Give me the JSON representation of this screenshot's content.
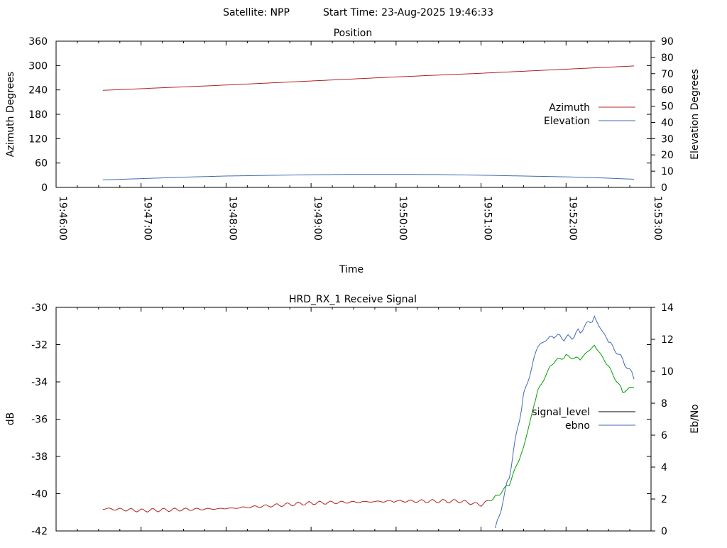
{
  "header": {
    "satellite_text": "Satellite: NPP",
    "start_time_text": "Start Time: 23-Aug-2025 19:46:33"
  },
  "chart_data": [
    {
      "type": "line",
      "title": "Position",
      "xlabel": "Time",
      "ylabel": "Azimuth Degrees",
      "y2label": "Elevation Degrees",
      "x_ticks": [
        "19:46:00",
        "19:47:00",
        "19:48:00",
        "19:49:00",
        "19:50:00",
        "19:51:00",
        "19:52:00",
        "19:53:00"
      ],
      "x_range": [
        "19:46:00",
        "19:53:00"
      ],
      "ylim": [
        0,
        360
      ],
      "y_ticks": [
        0,
        60,
        120,
        180,
        240,
        300,
        360
      ],
      "y2lim": [
        0,
        90
      ],
      "y2_ticks": [
        0,
        10,
        20,
        30,
        40,
        50,
        60,
        70,
        80,
        90
      ],
      "legend_position": "right",
      "series": [
        {
          "name": "Azimuth",
          "axis": "y",
          "color": "#b22222",
          "x": [
            "19:46:33",
            "19:47:00",
            "19:48:00",
            "19:49:00",
            "19:50:00",
            "19:51:00",
            "19:52:00",
            "19:52:48"
          ],
          "values": [
            239,
            243,
            252,
            262,
            272,
            281,
            291,
            299
          ]
        },
        {
          "name": "Elevation",
          "axis": "y2",
          "color": "#4169b4",
          "x": [
            "19:46:33",
            "19:47:00",
            "19:47:30",
            "19:48:00",
            "19:48:30",
            "19:49:00",
            "19:49:30",
            "19:50:00",
            "19:50:30",
            "19:51:00",
            "19:51:30",
            "19:52:00",
            "19:52:30",
            "19:52:48"
          ],
          "values": [
            4.6,
            5.4,
            6.3,
            7.0,
            7.4,
            7.8,
            8.0,
            8.0,
            7.9,
            7.5,
            7.0,
            6.5,
            5.7,
            5.0
          ]
        }
      ]
    },
    {
      "type": "line",
      "title": "HRD_RX_1 Receive Signal",
      "xlabel": "",
      "ylabel": "dB",
      "y2label": "Eb/No",
      "x_range": [
        "19:46:00",
        "19:53:00"
      ],
      "ylim": [
        -42,
        -30
      ],
      "y_ticks": [
        -42,
        -40,
        -38,
        -36,
        -34,
        -32,
        -30
      ],
      "y2lim": [
        0,
        14
      ],
      "y2_ticks": [
        0,
        2,
        4,
        6,
        8,
        10,
        12,
        14
      ],
      "legend_position": "right",
      "series": [
        {
          "name": "signal_level",
          "axis": "y",
          "color": "#000000",
          "x": [
            "19:46:33",
            "19:47:00",
            "19:48:00",
            "19:49:00",
            "19:50:00",
            "19:50:45",
            "19:51:00",
            "19:51:10",
            "19:51:20",
            "19:51:30",
            "19:51:40",
            "19:51:50",
            "19:52:00",
            "19:52:10",
            "19:52:20",
            "19:52:30",
            "19:52:40",
            "19:52:48"
          ],
          "values": [
            -40.8,
            -40.9,
            -40.8,
            -40.5,
            -40.4,
            -40.4,
            -40.6,
            -40.2,
            -39.5,
            -37.5,
            -34.5,
            -33.0,
            -32.6,
            -32.8,
            -32.0,
            -33.2,
            -34.5,
            -34.3
          ],
          "render_colors": [
            "#b22222",
            "#00a000"
          ]
        },
        {
          "name": "ebno",
          "axis": "y2",
          "color": "#4169b4",
          "x": [
            "19:51:10",
            "19:51:20",
            "19:51:30",
            "19:51:40",
            "19:51:50",
            "19:52:00",
            "19:52:10",
            "19:52:20",
            "19:52:30",
            "19:52:40",
            "19:52:48"
          ],
          "values": [
            0,
            3.5,
            8.5,
            11.5,
            12.3,
            12.0,
            12.5,
            13.4,
            11.8,
            10.8,
            9.5
          ]
        }
      ]
    }
  ]
}
